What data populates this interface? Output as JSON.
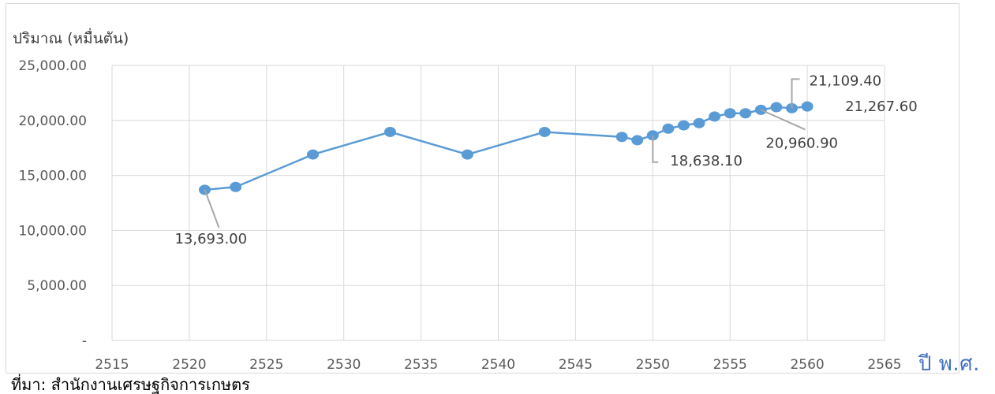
{
  "chart_data": {
    "type": "line",
    "ylabel": "ปริมาณ (หมื่นตัน)",
    "xlabel": "ปี พ.ศ.",
    "xlim": [
      2515,
      2565
    ],
    "ylim": [
      0,
      25000
    ],
    "x_ticks": [
      "2515",
      "2520",
      "2525",
      "2530",
      "2535",
      "2540",
      "2545",
      "2550",
      "2555",
      "2560",
      "2565"
    ],
    "y_ticks": [
      "-",
      "5,000.00",
      "10,000.00",
      "15,000.00",
      "20,000.00",
      "25,000.00"
    ],
    "grid": true,
    "legend": "none",
    "series_color": "#5b9bd5",
    "series": [
      {
        "x": [
          2521,
          2523,
          2528,
          2533,
          2538,
          2543,
          2548,
          2549,
          2550,
          2551,
          2552,
          2553,
          2554,
          2555,
          2556,
          2557,
          2558,
          2559,
          2560
        ],
        "values": [
          13693.0,
          13950,
          16900,
          18950,
          16900,
          18950,
          18500,
          18200,
          18638.1,
          19250,
          19550,
          19750,
          20350,
          20650,
          20650,
          20960.9,
          21200,
          21109.4,
          21267.6
        ]
      }
    ],
    "annotations": [
      "13,693.00",
      "18,638.10",
      "20,960.90",
      "21,109.40",
      "21,267.60"
    ]
  },
  "caption": "ที่มา: สำนักงานเศรษฐกิจการเกษตร"
}
